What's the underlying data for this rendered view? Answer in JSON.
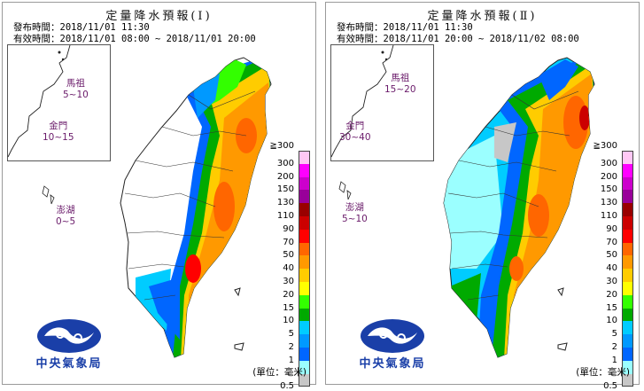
{
  "panels": [
    {
      "title": "定量降水預報(Ⅰ)",
      "issued": "發布時間：2018/11/01 11:30",
      "valid": "有效時間：2018/11/01 08:00 ~ 2018/11/01 20:00",
      "islands": [
        {
          "name": "馬祖",
          "range": "5~10"
        },
        {
          "name": "金門",
          "range": "10~15"
        },
        {
          "name": "澎湖",
          "range": "0~5"
        }
      ]
    },
    {
      "title": "定量降水預報(Ⅱ)",
      "issued": "發布時間：2018/11/01 11:30",
      "valid": "有效時間：2018/11/01 20:00 ~ 2018/11/02 08:00",
      "islands": [
        {
          "name": "馬祖",
          "range": "15~20"
        },
        {
          "name": "金門",
          "range": "30~40"
        },
        {
          "name": "澎湖",
          "range": "5~10"
        }
      ]
    }
  ],
  "legend": {
    "top_label": "≧300",
    "labels": [
      "300",
      "200",
      "150",
      "130",
      "110",
      "90",
      "70",
      "50",
      "40",
      "30",
      "20",
      "15",
      "10",
      "5",
      "2",
      "1"
    ],
    "bottom_label": "0.5",
    "colors": [
      "#ffc8f5",
      "#ff00ff",
      "#cc00cc",
      "#99009a",
      "#990000",
      "#cc0000",
      "#ff0000",
      "#ff6600",
      "#ff9900",
      "#ffcc00",
      "#ffff00",
      "#33ff00",
      "#00aa00",
      "#00ccff",
      "#0099ff",
      "#0066ff",
      "#9bffff",
      "#c7c7c7"
    ],
    "unit": "(單位：毫米)"
  },
  "logo": {
    "text": "中央氣象局"
  }
}
